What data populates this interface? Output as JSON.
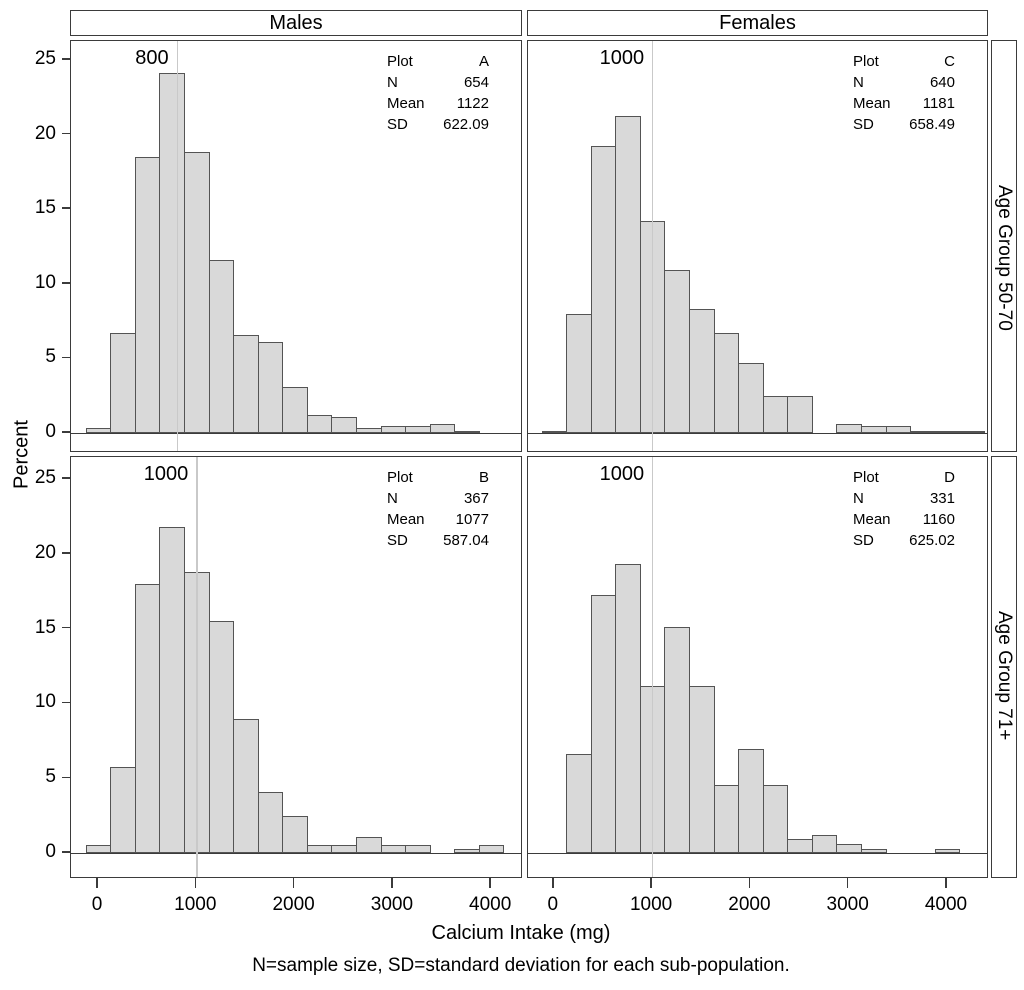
{
  "chart_data": {
    "type": "bar",
    "subtype": "paneled-histogram",
    "title": "",
    "xlabel": "Calcium Intake (mg)",
    "ylabel": "Percent",
    "footnote": "N=sample size, SD=standard deviation for each sub-population.",
    "col_headers": [
      "Males",
      "Females"
    ],
    "row_headers": [
      "Age Group 50-70",
      "Age Group 71+"
    ],
    "y_ticks": [
      0,
      5,
      10,
      15,
      20,
      25
    ],
    "x_ticks": [
      0,
      1000,
      2000,
      3000,
      4000
    ],
    "ylim": [
      0,
      26
    ],
    "xlim": [
      -275,
      4475
    ],
    "bin_width": 250,
    "grid": false,
    "stats_labels": {
      "plot": "Plot",
      "n": "N",
      "mean": "Mean",
      "sd": "SD"
    },
    "panels": [
      {
        "plot": "A",
        "col": 0,
        "row": 0,
        "col_header": "Males",
        "row_header": "Age Group 50-70",
        "n": "654",
        "mean": "1122",
        "sd": "622.09",
        "refline": 800,
        "refline_label": "800",
        "midpoints": [
          0,
          250,
          500,
          750,
          1000,
          1250,
          1500,
          1750,
          2000,
          2250,
          2500,
          2750,
          3000,
          3250,
          3500,
          3750
        ],
        "values": [
          0.31,
          6.73,
          18.5,
          24.16,
          18.81,
          11.62,
          6.57,
          6.12,
          3.06,
          1.22,
          1.07,
          0.31,
          0.46,
          0.46,
          0.61,
          0.15
        ]
      },
      {
        "plot": "C",
        "col": 1,
        "row": 0,
        "col_header": "Females",
        "row_header": "Age Group 50-70",
        "n": "640",
        "mean": "1181",
        "sd": "658.49",
        "refline": 1000,
        "refline_label": "1000",
        "midpoints": [
          0,
          250,
          500,
          750,
          1000,
          1250,
          1500,
          1750,
          2000,
          2250,
          2500,
          2750,
          3000,
          3250,
          3500,
          3750,
          4000,
          4250
        ],
        "values": [
          0.16,
          7.97,
          19.22,
          21.25,
          14.22,
          10.94,
          8.28,
          6.72,
          4.69,
          2.5,
          2.5,
          0,
          0.63,
          0.47,
          0.47,
          0.16,
          0.16,
          0.16
        ]
      },
      {
        "plot": "B",
        "col": 0,
        "row": 1,
        "col_header": "Males",
        "row_header": "Age Group 71+",
        "n": "367",
        "mean": "1077",
        "sd": "587.04",
        "refline": 1000,
        "refline_label": "1000",
        "midpoints": [
          0,
          250,
          500,
          750,
          1000,
          1250,
          1500,
          1750,
          2000,
          2250,
          2500,
          2750,
          3000,
          3250,
          3500,
          3750,
          4000
        ],
        "values": [
          0.54,
          5.72,
          17.98,
          21.8,
          18.8,
          15.53,
          8.99,
          4.09,
          2.45,
          0.54,
          0.54,
          1.09,
          0.54,
          0.54,
          0,
          0.27,
          0.54
        ]
      },
      {
        "plot": "D",
        "col": 1,
        "row": 1,
        "col_header": "Females",
        "row_header": "Age Group 71+",
        "n": "331",
        "mean": "1160",
        "sd": "625.02",
        "refline": 1000,
        "refline_label": "1000",
        "midpoints": [
          0,
          250,
          500,
          750,
          1000,
          1250,
          1500,
          1750,
          2000,
          2250,
          2500,
          2750,
          3000,
          3250,
          3500,
          3750,
          4000
        ],
        "values": [
          0,
          6.65,
          17.22,
          19.34,
          11.18,
          15.11,
          11.18,
          4.53,
          6.95,
          4.53,
          0.91,
          1.21,
          0.6,
          0.3,
          0,
          0,
          0.3
        ]
      }
    ],
    "colors": {
      "bar_fill": "#d9d9d9",
      "bar_stroke": "#545454",
      "border": "#3b3b3b",
      "refline": "#c9c9c9"
    }
  }
}
